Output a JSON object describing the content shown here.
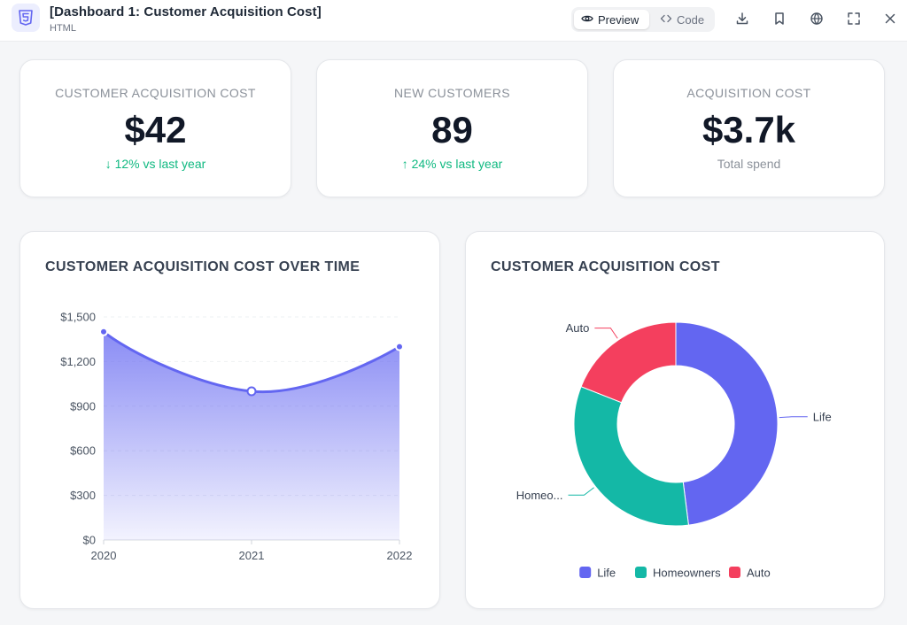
{
  "header": {
    "title": "[Dashboard 1: Customer Acquisition Cost]",
    "subtitle": "HTML",
    "preview_label": "Preview",
    "code_label": "Code"
  },
  "kpis": [
    {
      "label": "CUSTOMER ACQUISITION COST",
      "value": "$42",
      "sub": "↓ 12% vs last year",
      "tone": "positive"
    },
    {
      "label": "NEW CUSTOMERS",
      "value": "89",
      "sub": "↑ 24% vs last year",
      "tone": "positive"
    },
    {
      "label": "ACQUISITION COST",
      "value": "$3.7k",
      "sub": "Total spend",
      "tone": "neutral"
    }
  ],
  "line_chart": {
    "title": "CUSTOMER ACQUISITION COST OVER TIME"
  },
  "pie_chart": {
    "title": "CUSTOMER ACQUISITION COST"
  },
  "colors": {
    "accent": "#6366f1",
    "life": "#6366f1",
    "homeowners": "#14b8a6",
    "auto": "#f43f5e",
    "positive": "#10b981"
  },
  "chart_data": [
    {
      "type": "area",
      "title": "CUSTOMER ACQUISITION COST OVER TIME",
      "categories": [
        "2020",
        "2021",
        "2022"
      ],
      "values": [
        1400,
        1000,
        1300
      ],
      "ylim": [
        0,
        1500
      ],
      "yticks": [
        0,
        300,
        600,
        900,
        1200,
        1500
      ],
      "ytick_labels": [
        "$0",
        "$300",
        "$600",
        "$900",
        "$1,200",
        "$1,500"
      ],
      "grid": true
    },
    {
      "type": "pie",
      "title": "CUSTOMER ACQUISITION COST",
      "labels": [
        "Life",
        "Homeowners",
        "Auto"
      ],
      "slice_labels": [
        "Life",
        "Homeo...",
        "Auto"
      ],
      "values": [
        48,
        33,
        19
      ],
      "legend": "bottom"
    }
  ]
}
